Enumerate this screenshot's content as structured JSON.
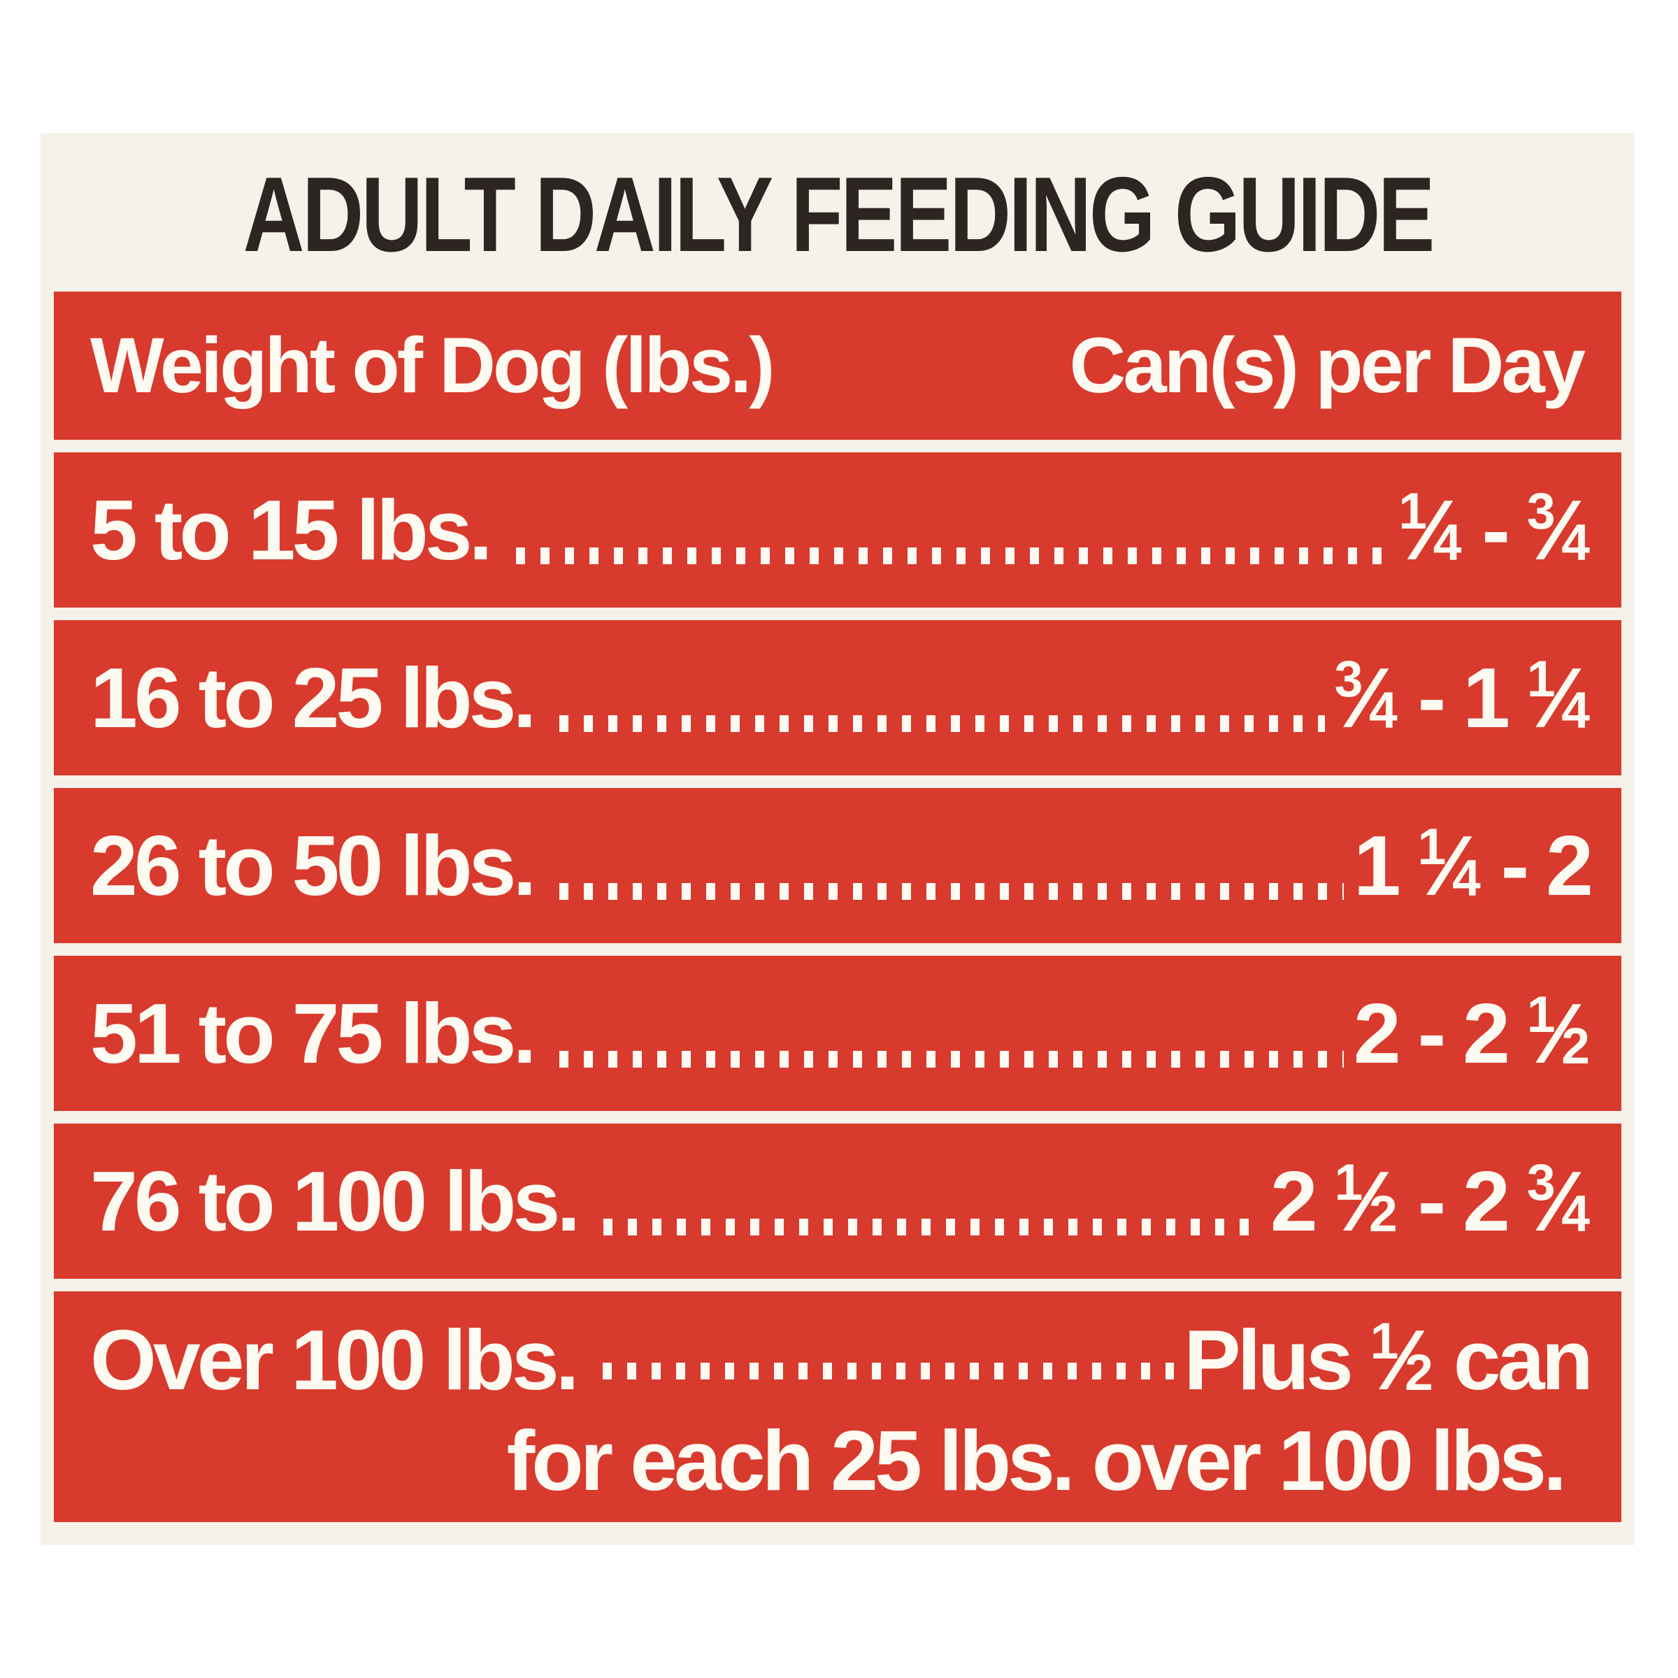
{
  "colors": {
    "page_bg": "#ffffff",
    "cream": "#f6f2e9",
    "red": "#d83a2d",
    "text_light": "#fdfaf2",
    "ink": "#2d2521"
  },
  "label": {
    "title": "ADULT DAILY FEEDING GUIDE",
    "table": {
      "header": {
        "weight_column": "Weight of Dog (lbs.)",
        "cans_column": "Can(s) per Day"
      },
      "rows": [
        {
          "weight": "5 to 15 lbs.",
          "cans": "¼ - ¾"
        },
        {
          "weight": "16 to 25 lbs.",
          "cans": "¾ - 1 ¼"
        },
        {
          "weight": "26 to 50 lbs.",
          "cans": "1 ¼ - 2"
        },
        {
          "weight": "51 to 75 lbs.",
          "cans": "2 - 2 ½"
        },
        {
          "weight": "76 to 100 lbs.",
          "cans": "2 ½ - 2 ¾"
        },
        {
          "weight": "Over 100 lbs.",
          "cans": "Plus ½ can",
          "note": "for each 25 lbs. over 100 lbs."
        }
      ]
    }
  }
}
